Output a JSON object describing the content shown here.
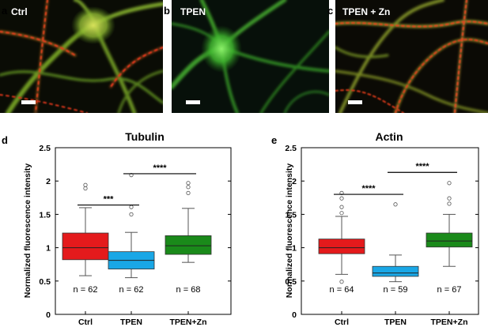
{
  "micrographs": [
    {
      "panel_letter": "a",
      "label": "Ctrl",
      "scale_bar": true
    },
    {
      "panel_letter": "b",
      "label": "TPEN",
      "scale_bar": true
    },
    {
      "panel_letter": "c",
      "label": "TPEN + Zn",
      "scale_bar": true
    }
  ],
  "chart_data": [
    {
      "type": "box",
      "panel_letter": "d",
      "title": "Tubulin",
      "ylabel": "Normalized fluorescence intensity",
      "ylim": [
        0,
        2.5
      ],
      "yticks": [
        0,
        0.5,
        1,
        1.5,
        2,
        2.5
      ],
      "ytick_labels": [
        "0",
        "0.5",
        "1",
        "1.5",
        "2",
        "2.5"
      ],
      "categories": [
        "Ctrl",
        "TPEN",
        "TPEN+Zn"
      ],
      "boxes": [
        {
          "category": "Ctrl",
          "color": "#e41a1c",
          "whisker_low": 0.58,
          "q1": 0.82,
          "median": 1.0,
          "q3": 1.22,
          "whisker_high": 1.6,
          "outliers": [
            1.89,
            1.94
          ],
          "n_label": "n = 62"
        },
        {
          "category": "TPEN",
          "color": "#1aa7e6",
          "whisker_low": 0.55,
          "q1": 0.68,
          "median": 0.81,
          "q3": 0.94,
          "whisker_high": 1.23,
          "outliers": [
            1.5,
            1.61,
            2.09
          ],
          "n_label": "n = 62"
        },
        {
          "category": "TPEN+Zn",
          "color": "#1a8a1a",
          "whisker_low": 0.78,
          "q1": 0.9,
          "median": 1.03,
          "q3": 1.18,
          "whisker_high": 1.59,
          "outliers": [
            1.82,
            1.91,
            1.97
          ],
          "n_label": "n = 68"
        }
      ],
      "significance": [
        {
          "from": "Ctrl",
          "to": "TPEN",
          "label": "***",
          "y": 1.64
        },
        {
          "from": "TPEN",
          "to": "TPEN+Zn",
          "label": "****",
          "y": 2.11
        }
      ]
    },
    {
      "type": "box",
      "panel_letter": "e",
      "title": "Actin",
      "ylabel": "Normalized fluorescence intensity",
      "ylim": [
        0,
        2.5
      ],
      "yticks": [
        0,
        0.5,
        1,
        1.5,
        2,
        2.5
      ],
      "ytick_labels": [
        "0",
        "0.5",
        "1",
        "1.5",
        "2",
        "2.5"
      ],
      "categories": [
        "Ctrl",
        "TPEN",
        "TPEN+Zn"
      ],
      "boxes": [
        {
          "category": "Ctrl",
          "color": "#e41a1c",
          "whisker_low": 0.6,
          "q1": 0.91,
          "median": 1.0,
          "q3": 1.13,
          "whisker_high": 1.47,
          "outliers": [
            0.49,
            1.52,
            1.61,
            1.74,
            1.82
          ],
          "n_label": "n = 64"
        },
        {
          "category": "TPEN",
          "color": "#1aa7e6",
          "whisker_low": 0.49,
          "q1": 0.57,
          "median": 0.62,
          "q3": 0.72,
          "whisker_high": 0.89,
          "outliers": [
            1.65
          ],
          "n_label": "n = 59"
        },
        {
          "category": "TPEN+Zn",
          "color": "#1a8a1a",
          "whisker_low": 0.72,
          "q1": 1.01,
          "median": 1.1,
          "q3": 1.22,
          "whisker_high": 1.5,
          "outliers": [
            1.66,
            1.74,
            1.97
          ],
          "n_label": "n = 67"
        }
      ],
      "significance": [
        {
          "from": "Ctrl",
          "to": "TPEN",
          "label": "****",
          "y": 1.8
        },
        {
          "from": "TPEN",
          "to": "TPEN+Zn",
          "label": "****",
          "y": 2.13
        }
      ]
    }
  ]
}
